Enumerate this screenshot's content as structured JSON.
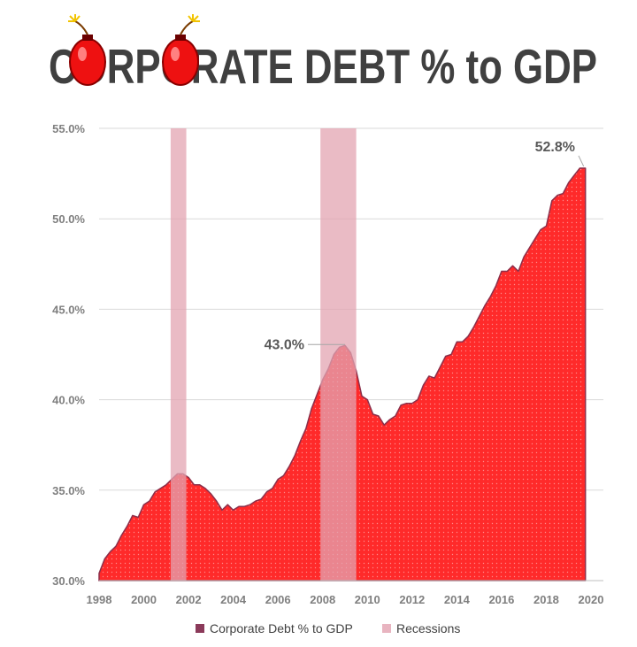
{
  "chart_data": {
    "type": "area",
    "title": "CORPORATE DEBT % to GDP",
    "xlabel": "",
    "ylabel": "",
    "xlim": [
      1998,
      2020
    ],
    "ylim": [
      30,
      55
    ],
    "y_ticks": [
      "55.0%",
      "50.0%",
      "45.0%",
      "40.0%",
      "35.0%",
      "30.0%"
    ],
    "y_tick_values": [
      55,
      50,
      45,
      40,
      35,
      30
    ],
    "x_ticks": [
      "1998",
      "2000",
      "2002",
      "2004",
      "2006",
      "2008",
      "2010",
      "2012",
      "2014",
      "2016",
      "2018",
      "2020"
    ],
    "x_tick_values": [
      1998,
      2000,
      2002,
      2004,
      2006,
      2008,
      2010,
      2012,
      2014,
      2016,
      2018,
      2020
    ],
    "grid": true,
    "legend_position": "bottom",
    "colors": {
      "series_fill": "#ff2a2a",
      "series_line": "#8b2f4a",
      "recession_fill": "#e3a4b1",
      "legend_series": "#8b3a5a",
      "legend_recessions": "#e8b4c0",
      "gridline": "#d9d9d9"
    },
    "series": [
      {
        "name": "Corporate Debt % to GDP",
        "x": [
          1998.0,
          1998.25,
          1998.5,
          1998.75,
          1999.0,
          1999.25,
          1999.5,
          1999.75,
          2000.0,
          2000.25,
          2000.5,
          2000.75,
          2001.0,
          2001.25,
          2001.5,
          2001.75,
          2002.0,
          2002.25,
          2002.5,
          2002.75,
          2003.0,
          2003.25,
          2003.5,
          2003.75,
          2004.0,
          2004.25,
          2004.5,
          2004.75,
          2005.0,
          2005.25,
          2005.5,
          2005.75,
          2006.0,
          2006.25,
          2006.5,
          2006.75,
          2007.0,
          2007.25,
          2007.5,
          2007.75,
          2008.0,
          2008.25,
          2008.5,
          2008.75,
          2009.0,
          2009.25,
          2009.5,
          2009.75,
          2010.0,
          2010.25,
          2010.5,
          2010.75,
          2011.0,
          2011.25,
          2011.5,
          2011.75,
          2012.0,
          2012.25,
          2012.5,
          2012.75,
          2013.0,
          2013.25,
          2013.5,
          2013.75,
          2014.0,
          2014.25,
          2014.5,
          2014.75,
          2015.0,
          2015.25,
          2015.5,
          2015.75,
          2016.0,
          2016.25,
          2016.5,
          2016.75,
          2017.0,
          2017.25,
          2017.5,
          2017.75,
          2018.0,
          2018.25,
          2018.5,
          2018.75,
          2019.0,
          2019.25,
          2019.5,
          2019.75
        ],
        "values": [
          30.4,
          31.2,
          31.6,
          31.9,
          32.5,
          33.0,
          33.6,
          33.5,
          34.2,
          34.4,
          34.9,
          35.1,
          35.3,
          35.6,
          35.9,
          35.9,
          35.7,
          35.3,
          35.3,
          35.1,
          34.8,
          34.4,
          33.9,
          34.2,
          33.9,
          34.1,
          34.1,
          34.2,
          34.4,
          34.5,
          34.9,
          35.1,
          35.6,
          35.8,
          36.3,
          36.9,
          37.7,
          38.4,
          39.5,
          40.3,
          41.1,
          41.7,
          42.5,
          42.9,
          43.0,
          42.6,
          41.6,
          40.2,
          40.0,
          39.2,
          39.1,
          38.6,
          38.9,
          39.1,
          39.7,
          39.8,
          39.8,
          40.0,
          40.8,
          41.3,
          41.2,
          41.8,
          42.4,
          42.5,
          43.2,
          43.2,
          43.5,
          44.0,
          44.6,
          45.2,
          45.7,
          46.3,
          47.1,
          47.1,
          47.4,
          47.1,
          47.9,
          48.4,
          48.9,
          49.4,
          49.6,
          51.0,
          51.3,
          51.4,
          52.0,
          52.4,
          52.8,
          52.8
        ]
      },
      {
        "name": "Recessions",
        "ranges": [
          [
            2001.2,
            2001.9
          ],
          [
            2007.9,
            2009.5
          ]
        ]
      }
    ],
    "annotations": [
      {
        "text": "43.0%",
        "x": 2009.0,
        "y": 43.0
      },
      {
        "text": "52.8%",
        "x": 2019.75,
        "y": 52.8
      }
    ]
  }
}
